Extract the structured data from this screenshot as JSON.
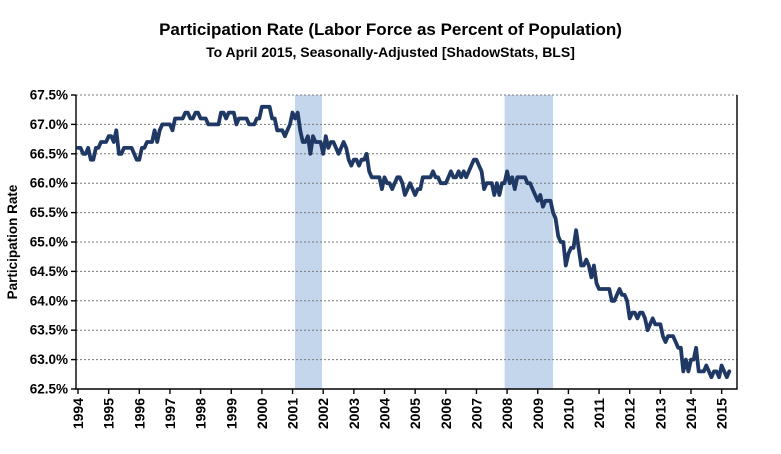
{
  "chart_data": {
    "type": "line",
    "title": "Participation Rate (Labor Force as Percent of Population)",
    "subtitle": "To April 2015, Seasonally-Adjusted [ShadowStats, BLS]",
    "ylabel": "Participation Rate",
    "xlabel": "",
    "legend": "none",
    "grid": "horizontal-dotted",
    "ylim": [
      62.5,
      67.5
    ],
    "y_ticks": [
      62.5,
      63.0,
      63.5,
      64.0,
      64.5,
      65.0,
      65.5,
      66.0,
      66.5,
      67.0,
      67.5
    ],
    "y_tick_labels": [
      "62.5%",
      "63.0%",
      "63.5%",
      "64.0%",
      "64.5%",
      "65.0%",
      "65.5%",
      "66.0%",
      "66.5%",
      "67.0%",
      "67.5%"
    ],
    "x_tick_labels": [
      "1994",
      "1995",
      "1996",
      "1997",
      "1998",
      "1999",
      "2000",
      "2001",
      "2002",
      "2003",
      "2004",
      "2005",
      "2006",
      "2007",
      "2008",
      "2009",
      "2010",
      "2011",
      "2012",
      "2013",
      "2014",
      "2015"
    ],
    "x_axis": {
      "start_year": 1994,
      "end_year": 2015,
      "end_month": 4,
      "frequency": "monthly"
    },
    "line_color": "#1F3864",
    "recession_band_color": "#C3D6EC",
    "recession_bands": [
      {
        "start": 2001.08,
        "end": 2001.96
      },
      {
        "start": 2007.92,
        "end": 2009.5
      }
    ],
    "series": [
      {
        "name": "Labor force participation rate (%), monthly, Jan 1994 - Apr 2015",
        "values": [
          66.6,
          66.6,
          66.5,
          66.5,
          66.6,
          66.4,
          66.4,
          66.6,
          66.6,
          66.7,
          66.7,
          66.7,
          66.8,
          66.8,
          66.7,
          66.9,
          66.5,
          66.5,
          66.6,
          66.6,
          66.6,
          66.6,
          66.5,
          66.4,
          66.4,
          66.6,
          66.6,
          66.7,
          66.7,
          66.7,
          66.9,
          66.7,
          66.9,
          67.0,
          67.0,
          67.0,
          67.0,
          66.9,
          67.1,
          67.1,
          67.1,
          67.1,
          67.2,
          67.2,
          67.1,
          67.1,
          67.2,
          67.2,
          67.1,
          67.1,
          67.1,
          67.0,
          67.0,
          67.0,
          67.0,
          67.0,
          67.2,
          67.2,
          67.1,
          67.2,
          67.2,
          67.2,
          67.0,
          67.1,
          67.1,
          67.1,
          67.1,
          67.0,
          67.0,
          67.0,
          67.1,
          67.1,
          67.3,
          67.3,
          67.3,
          67.3,
          67.1,
          67.1,
          66.9,
          66.9,
          66.9,
          66.8,
          66.9,
          67.0,
          67.2,
          67.1,
          67.2,
          66.9,
          66.7,
          66.7,
          66.8,
          66.5,
          66.8,
          66.7,
          66.7,
          66.7,
          66.5,
          66.8,
          66.6,
          66.7,
          66.7,
          66.6,
          66.5,
          66.6,
          66.7,
          66.6,
          66.4,
          66.3,
          66.4,
          66.4,
          66.3,
          66.4,
          66.4,
          66.5,
          66.2,
          66.1,
          66.1,
          66.1,
          66.1,
          65.9,
          66.1,
          66.0,
          66.0,
          65.9,
          66.0,
          66.1,
          66.1,
          66.0,
          65.8,
          65.9,
          66.0,
          65.9,
          65.8,
          65.9,
          65.9,
          66.1,
          66.1,
          66.1,
          66.1,
          66.2,
          66.1,
          66.1,
          66.0,
          66.0,
          66.0,
          66.1,
          66.2,
          66.1,
          66.1,
          66.2,
          66.1,
          66.2,
          66.1,
          66.2,
          66.3,
          66.4,
          66.4,
          66.3,
          66.2,
          65.9,
          66.0,
          66.0,
          66.0,
          65.8,
          66.0,
          65.8,
          66.0,
          66.0,
          66.2,
          66.0,
          66.1,
          65.9,
          66.1,
          66.1,
          66.1,
          66.1,
          66.0,
          66.0,
          65.9,
          65.8,
          65.7,
          65.8,
          65.6,
          65.7,
          65.7,
          65.7,
          65.5,
          65.4,
          65.1,
          65.0,
          65.0,
          64.6,
          64.8,
          64.9,
          64.9,
          65.2,
          64.9,
          64.6,
          64.6,
          64.7,
          64.6,
          64.4,
          64.6,
          64.3,
          64.2,
          64.2,
          64.2,
          64.2,
          64.2,
          64.0,
          64.0,
          64.1,
          64.2,
          64.1,
          64.1,
          64.0,
          63.7,
          63.8,
          63.8,
          63.7,
          63.8,
          63.8,
          63.7,
          63.5,
          63.6,
          63.7,
          63.6,
          63.6,
          63.6,
          63.4,
          63.3,
          63.4,
          63.4,
          63.4,
          63.3,
          63.2,
          63.2,
          62.8,
          63.0,
          62.8,
          63.0,
          63.0,
          63.2,
          62.8,
          62.8,
          62.8,
          62.9,
          62.8,
          62.7,
          62.8,
          62.8,
          62.7,
          62.9,
          62.8,
          62.7,
          62.8
        ]
      }
    ]
  }
}
